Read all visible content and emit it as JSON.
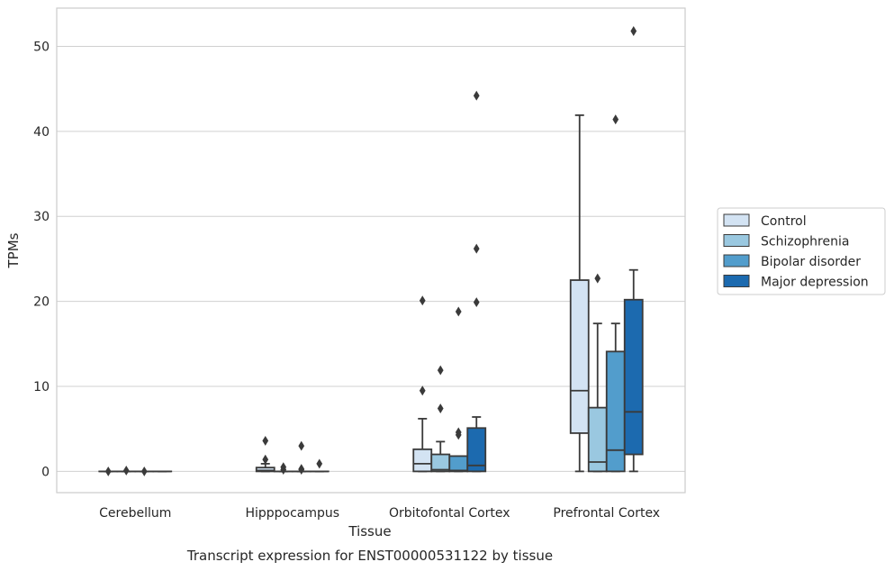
{
  "caption": "Transcript expression for ENST00000531122 by tissue",
  "chart_data": {
    "type": "box",
    "xlabel": "Tissue",
    "ylabel": "TPMs",
    "ylim": [
      -2.5,
      54.5
    ],
    "yticks": [
      0,
      10,
      20,
      30,
      40,
      50
    ],
    "grid": "horizontal",
    "legend_position": "right",
    "categories": [
      "Cerebellum",
      "Hipppocampus",
      "Orbitofontal Cortex",
      "Prefrontal Cortex"
    ],
    "series": [
      {
        "name": "Control",
        "color": "#d3e3f3",
        "boxes": [
          {
            "whislo": 0,
            "q1": 0,
            "med": 0,
            "q3": 0,
            "whishi": 0,
            "fliers": [
              0
            ]
          },
          {
            "whislo": 0,
            "q1": 0,
            "med": 0.1,
            "q3": 0.45,
            "whishi": 0.9,
            "fliers": [
              1.4,
              3.6
            ]
          },
          {
            "whislo": 0,
            "q1": 0,
            "med": 0.9,
            "q3": 2.6,
            "whishi": 6.2,
            "fliers": [
              9.5,
              20.1
            ]
          },
          {
            "whislo": 0,
            "q1": 4.5,
            "med": 9.5,
            "q3": 22.5,
            "whishi": 41.9,
            "fliers": []
          }
        ]
      },
      {
        "name": "Schizophrenia",
        "color": "#9ac8e0",
        "boxes": [
          {
            "whislo": 0,
            "q1": 0,
            "med": 0,
            "q3": 0,
            "whishi": 0,
            "fliers": [
              0.1
            ]
          },
          {
            "whislo": 0,
            "q1": 0,
            "med": 0,
            "q3": 0,
            "whishi": 0,
            "fliers": [
              0.2,
              0.5
            ]
          },
          {
            "whislo": 0,
            "q1": 0,
            "med": 0.2,
            "q3": 2.0,
            "whishi": 3.5,
            "fliers": [
              7.4,
              11.9
            ]
          },
          {
            "whislo": 0,
            "q1": 0,
            "med": 1.1,
            "q3": 7.5,
            "whishi": 17.4,
            "fliers": [
              22.7
            ]
          }
        ]
      },
      {
        "name": "Bipolar disorder",
        "color": "#529dcc",
        "boxes": [
          {
            "whislo": 0,
            "q1": 0,
            "med": 0,
            "q3": 0,
            "whishi": 0,
            "fliers": [
              0
            ]
          },
          {
            "whislo": 0,
            "q1": 0,
            "med": 0,
            "q3": 0,
            "whishi": 0,
            "fliers": [
              0.2,
              0.3,
              3.0
            ]
          },
          {
            "whislo": 0,
            "q1": 0,
            "med": 0.1,
            "q3": 1.8,
            "whishi": 1.8,
            "fliers": [
              4.3,
              4.6,
              18.8
            ]
          },
          {
            "whislo": 0,
            "q1": 0,
            "med": 2.5,
            "q3": 14.1,
            "whishi": 17.4,
            "fliers": [
              41.4
            ]
          }
        ]
      },
      {
        "name": "Major depression",
        "color": "#1c6aaf",
        "boxes": [
          {
            "whislo": 0,
            "q1": 0,
            "med": 0,
            "q3": 0,
            "whishi": 0,
            "fliers": []
          },
          {
            "whislo": 0,
            "q1": 0,
            "med": 0,
            "q3": 0,
            "whishi": 0,
            "fliers": [
              0.9
            ]
          },
          {
            "whislo": 0,
            "q1": 0,
            "med": 0.7,
            "q3": 5.1,
            "whishi": 6.4,
            "fliers": [
              19.9,
              26.2,
              44.2
            ]
          },
          {
            "whislo": 0,
            "q1": 2.0,
            "med": 7.0,
            "q3": 20.2,
            "whishi": 23.7,
            "fliers": [
              51.8
            ]
          }
        ]
      }
    ]
  }
}
